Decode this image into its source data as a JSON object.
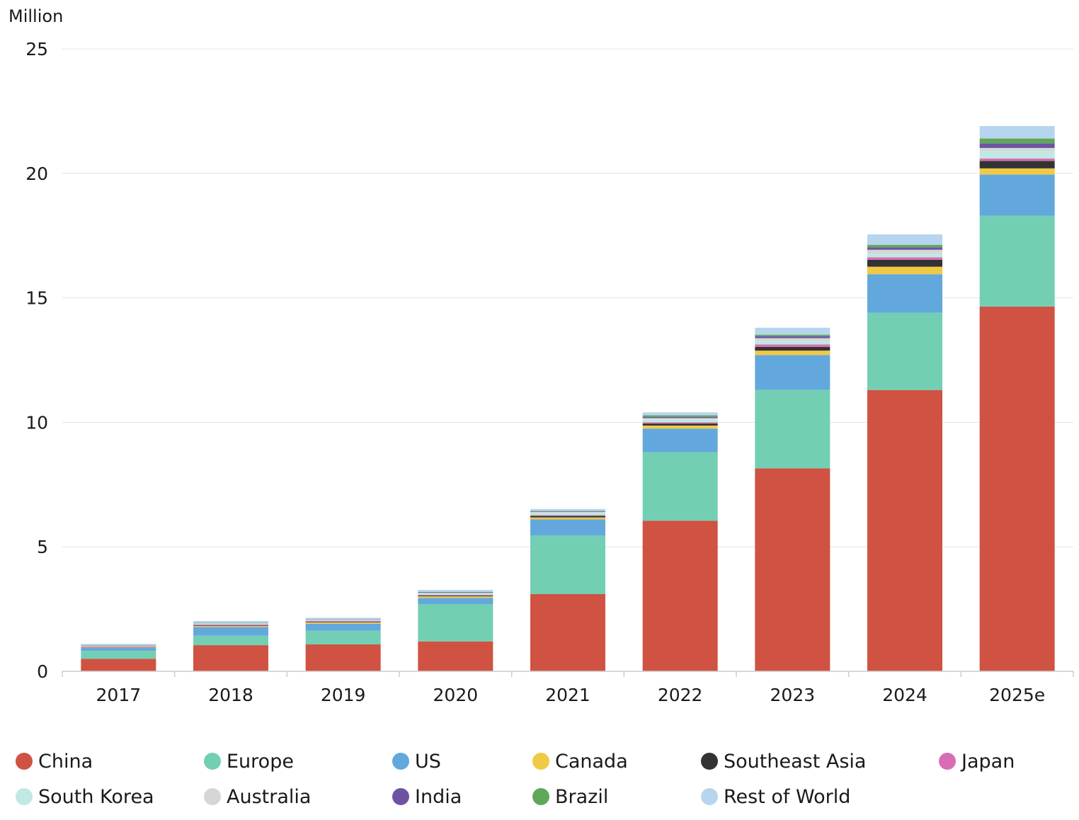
{
  "chart_data": {
    "type": "bar",
    "stacked": true,
    "unit_label": "Million",
    "ylim": [
      0,
      25
    ],
    "yticks": [
      0,
      5,
      10,
      15,
      20,
      25
    ],
    "grid": true,
    "categories": [
      "2017",
      "2018",
      "2019",
      "2020",
      "2021",
      "2022",
      "2023",
      "2024",
      "2025e"
    ],
    "series": [
      {
        "name": "China",
        "color": "#d05242",
        "values": [
          0.5,
          1.05,
          1.08,
          1.2,
          3.1,
          6.05,
          8.15,
          11.3,
          14.65
        ]
      },
      {
        "name": "Europe",
        "color": "#73cfb4",
        "values": [
          0.32,
          0.38,
          0.55,
          1.5,
          2.35,
          2.75,
          3.15,
          3.1,
          3.65
        ]
      },
      {
        "name": "US",
        "color": "#63a8dc",
        "values": [
          0.12,
          0.35,
          0.28,
          0.25,
          0.65,
          0.95,
          1.4,
          1.55,
          1.65
        ]
      },
      {
        "name": "Canada",
        "color": "#f0c945",
        "values": [
          0.02,
          0.04,
          0.05,
          0.06,
          0.08,
          0.12,
          0.18,
          0.3,
          0.25
        ]
      },
      {
        "name": "Southeast Asia",
        "color": "#333333",
        "values": [
          0.01,
          0.02,
          0.02,
          0.03,
          0.06,
          0.08,
          0.15,
          0.28,
          0.3
        ]
      },
      {
        "name": "Japan",
        "color": "#d96db3",
        "values": [
          0.03,
          0.04,
          0.04,
          0.03,
          0.03,
          0.05,
          0.1,
          0.1,
          0.1
        ]
      },
      {
        "name": "South Korea",
        "color": "#bfe9e2",
        "values": [
          0.02,
          0.04,
          0.04,
          0.06,
          0.1,
          0.12,
          0.15,
          0.15,
          0.3
        ]
      },
      {
        "name": "Australia",
        "color": "#d6d6d6",
        "values": [
          0.01,
          0.01,
          0.01,
          0.02,
          0.03,
          0.05,
          0.1,
          0.15,
          0.12
        ]
      },
      {
        "name": "India",
        "color": "#6d54a3",
        "values": [
          0.01,
          0.01,
          0.01,
          0.02,
          0.02,
          0.05,
          0.08,
          0.1,
          0.18
        ]
      },
      {
        "name": "Brazil",
        "color": "#5fa85a",
        "values": [
          0.01,
          0.01,
          0.01,
          0.02,
          0.02,
          0.06,
          0.06,
          0.1,
          0.2
        ]
      },
      {
        "name": "Rest of World",
        "color": "#b7d5ee",
        "values": [
          0.05,
          0.07,
          0.06,
          0.08,
          0.08,
          0.12,
          0.28,
          0.42,
          0.5
        ]
      }
    ]
  }
}
